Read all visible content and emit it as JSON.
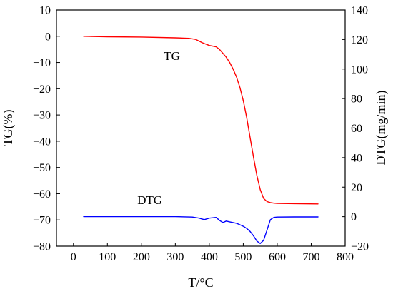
{
  "chart_data": {
    "type": "line",
    "title": "",
    "xlabel": "T/°C",
    "ylabel": "TG(%)",
    "y2label": "DTG(mg/min)",
    "xlim": [
      -50,
      800
    ],
    "ylim": [
      -80,
      10
    ],
    "y2lim": [
      -20,
      140
    ],
    "xticks": [
      0,
      100,
      200,
      300,
      400,
      500,
      600,
      700,
      800
    ],
    "xtick_labels": [
      "0",
      "100",
      "200",
      "300",
      "400",
      "500",
      "600",
      "700",
      "800"
    ],
    "yticks": [
      10,
      0,
      -10,
      -20,
      -30,
      -40,
      -50,
      -60,
      -70,
      -80
    ],
    "ytick_labels": [
      "10",
      "0",
      "−10",
      "−20",
      "−30",
      "−40",
      "−50",
      "−60",
      "−70",
      "−80"
    ],
    "y2ticks": [
      140,
      120,
      100,
      80,
      60,
      40,
      20,
      0,
      -20
    ],
    "y2tick_labels": [
      "140",
      "120",
      "100",
      "80",
      "60",
      "40",
      "20",
      "0",
      "−20"
    ],
    "grid": false,
    "annotations": [
      {
        "text": "TG",
        "x": 290,
        "y": -9
      },
      {
        "text": "DTG",
        "x": 225,
        "y": -64
      }
    ],
    "series": [
      {
        "label": "TG",
        "axis": "left",
        "color": "#ff0000",
        "x": [
          30,
          100,
          200,
          300,
          340,
          360,
          380,
          400,
          420,
          430,
          440,
          450,
          460,
          470,
          480,
          490,
          500,
          510,
          520,
          530,
          540,
          550,
          560,
          570,
          580,
          590,
          600,
          650,
          720
        ],
        "y": [
          0,
          -0.2,
          -0.3,
          -0.6,
          -0.8,
          -1.2,
          -2.5,
          -3.5,
          -4.0,
          -5.0,
          -6.5,
          -8.0,
          -10.0,
          -12.5,
          -15.5,
          -19.5,
          -24.5,
          -31.0,
          -38.5,
          -46.0,
          -53.0,
          -58.5,
          -61.8,
          -63.0,
          -63.4,
          -63.6,
          -63.7,
          -63.8,
          -63.9
        ]
      },
      {
        "label": "DTG",
        "axis": "right",
        "color": "#0000ff",
        "x": [
          30,
          100,
          200,
          300,
          350,
          370,
          385,
          400,
          420,
          430,
          440,
          450,
          460,
          470,
          480,
          490,
          500,
          510,
          520,
          530,
          540,
          550,
          560,
          570,
          580,
          590,
          600,
          650,
          720
        ],
        "y": [
          0,
          0,
          0,
          0,
          -0.3,
          -1.0,
          -2.0,
          -1.0,
          -0.5,
          -2.5,
          -4.0,
          -3.0,
          -3.5,
          -4.0,
          -4.5,
          -5.5,
          -6.5,
          -8.0,
          -10.0,
          -13.0,
          -16.5,
          -18.2,
          -16.0,
          -9.0,
          -2.0,
          -0.5,
          -0.3,
          -0.2,
          -0.2
        ]
      }
    ]
  }
}
